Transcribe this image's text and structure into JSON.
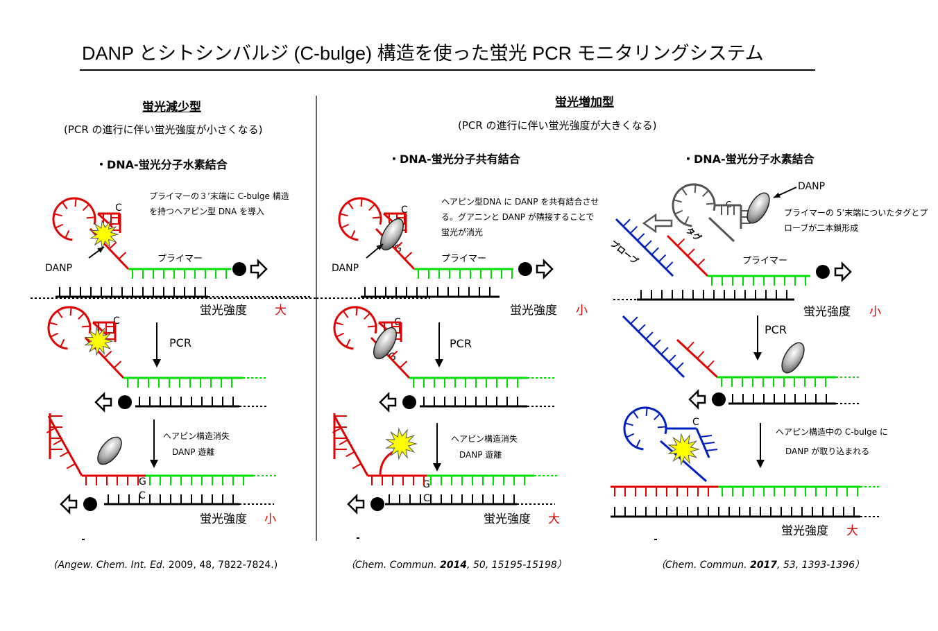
{
  "title": "DANP とシトシンバルジ (C-bulge) 構造を使った蛍光 PCR モニタリングシステム",
  "decrease": {
    "heading": "蛍光減少型",
    "subtitle": "(PCR の進行に伴い蛍光強度が小さくなる)"
  },
  "increase": {
    "heading": "蛍光増加型",
    "subtitle": "(PCR の進行に伴い蛍光強度が大きくなる)"
  },
  "panel1": {
    "binding": "・DNA-蛍光分子水素結合",
    "note": "プライマーの３’末端に C-bulge 構造を持つヘアピン型 DNA を導入",
    "danp": "DANP",
    "primer": "プライマー",
    "c": "C",
    "g": "G",
    "pcr": "PCR",
    "step3_note_1": "ヘアピン構造消失",
    "step3_note_2": "DANP 遊離",
    "intensity_label": "蛍光強度",
    "intensity_1": "大",
    "intensity_2": "小",
    "citation_journal": "Angew. Chem. Int. Ed.",
    "citation_rest": " 2009, 48, 7822-7824.)",
    "citation_open": "("
  },
  "panel2": {
    "binding": "・DNA-蛍光分子共有結合",
    "note": "ヘアピン型DNA に DANP を共有結合させる。グアニンと DANP が隣接することで蛍光が消光",
    "danp": "DANP",
    "primer": "プライマー",
    "c": "C",
    "g": "G",
    "pcr": "PCR",
    "step3_note_1": "ヘアピン構造消失",
    "step3_note_2": "DANP 遊離",
    "intensity_label": "蛍光強度",
    "intensity_1": "小",
    "intensity_2": "大",
    "citation_open": "（",
    "citation_journal": "Chem. Commun.",
    "citation_year": "2014",
    "citation_rest": ", 50, 15195-15198）"
  },
  "panel3": {
    "binding": "・DNA-蛍光分子水素結合",
    "danp": "DANP",
    "note": "プライマーの 5’末端についたタグとプローブが二本鎖形成",
    "probe": "プローブ",
    "tag": "タグ",
    "primer": "プライマー",
    "c": "C",
    "pcr": "PCR",
    "step3_note_1": "ヘアピン構造中の C-bulge に",
    "step3_note_2": "DANP が取り込まれる",
    "intensity_label": "蛍光強度",
    "intensity_1": "小",
    "intensity_2": "大",
    "citation_open": "（",
    "citation_journal": "Chem. Commun.",
    "citation_year": "2017",
    "citation_rest": ", 53, 1393-1396）"
  },
  "colors": {
    "hairpin": "#e00000",
    "primer": "#00dd00",
    "template": "#000000",
    "probe": "#0020c0",
    "danp_free": "#888888",
    "star": "#ffff00"
  }
}
